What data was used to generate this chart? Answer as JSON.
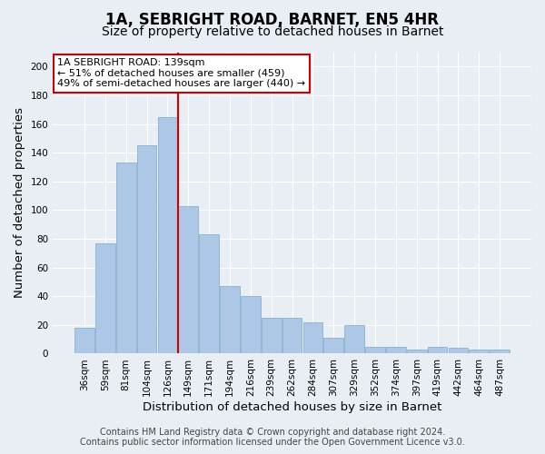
{
  "title": "1A, SEBRIGHT ROAD, BARNET, EN5 4HR",
  "subtitle": "Size of property relative to detached houses in Barnet",
  "xlabel": "Distribution of detached houses by size in Barnet",
  "ylabel": "Number of detached properties",
  "categories": [
    "36sqm",
    "59sqm",
    "81sqm",
    "104sqm",
    "126sqm",
    "149sqm",
    "171sqm",
    "194sqm",
    "216sqm",
    "239sqm",
    "262sqm",
    "284sqm",
    "307sqm",
    "329sqm",
    "352sqm",
    "374sqm",
    "397sqm",
    "419sqm",
    "442sqm",
    "464sqm",
    "487sqm"
  ],
  "values": [
    18,
    77,
    133,
    145,
    165,
    103,
    83,
    47,
    40,
    25,
    25,
    22,
    11,
    20,
    5,
    5,
    3,
    5,
    4,
    3,
    3
  ],
  "bar_color": "#adc8e6",
  "bar_edge_color": "#7aaac8",
  "vline_x_index": 5,
  "vline_color": "#cc0000",
  "annotation_title": "1A SEBRIGHT ROAD: 139sqm",
  "annotation_line1": "← 51% of detached houses are smaller (459)",
  "annotation_line2": "49% of semi-detached houses are larger (440) →",
  "annotation_box_color": "#ffffff",
  "annotation_box_edge": "#cc0000",
  "ylim": [
    0,
    210
  ],
  "yticks": [
    0,
    20,
    40,
    60,
    80,
    100,
    120,
    140,
    160,
    180,
    200
  ],
  "footer1": "Contains HM Land Registry data © Crown copyright and database right 2024.",
  "footer2": "Contains public sector information licensed under the Open Government Licence v3.0.",
  "bg_color": "#e8eef4",
  "grid_color": "#ffffff",
  "title_fontsize": 12,
  "subtitle_fontsize": 10,
  "axis_label_fontsize": 9.5,
  "tick_fontsize": 7.5,
  "footer_fontsize": 7
}
